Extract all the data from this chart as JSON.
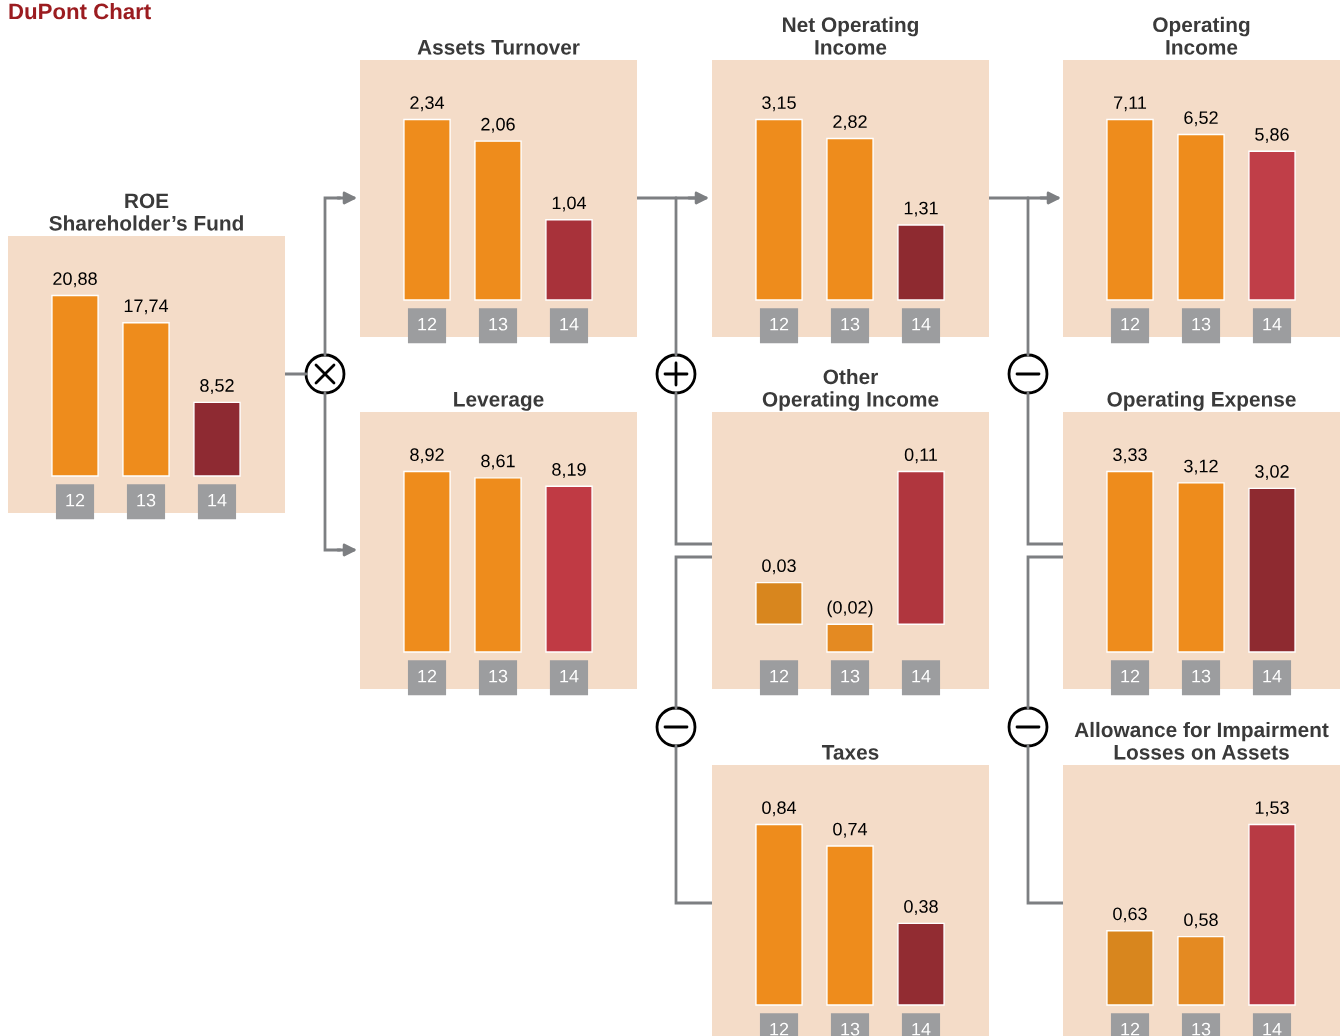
{
  "chart_data": [
    {
      "type": "other",
      "title": "DuPont Chart"
    },
    {
      "type": "bar",
      "title": "ROE\nShareholder’s Fund",
      "categories": [
        "12",
        "13",
        "14"
      ],
      "values": [
        20.88,
        17.74,
        8.52
      ],
      "value_labels": [
        "20,88",
        "17,74",
        "8,52"
      ],
      "colors": [
        "#ee8c1c",
        "#ee8c1c",
        "#8e2a32"
      ]
    },
    {
      "type": "bar",
      "title": "Assets Turnover",
      "categories": [
        "12",
        "13",
        "14"
      ],
      "values": [
        2.34,
        2.06,
        1.04
      ],
      "value_labels": [
        "2,34",
        "2,06",
        "1,04"
      ],
      "colors": [
        "#ee8c1c",
        "#ee8c1c",
        "#a8323a"
      ]
    },
    {
      "type": "bar",
      "title": "Net Operating\nIncome",
      "categories": [
        "12",
        "13",
        "14"
      ],
      "values": [
        3.15,
        2.82,
        1.31
      ],
      "value_labels": [
        "3,15",
        "2,82",
        "1,31"
      ],
      "colors": [
        "#ee8c1c",
        "#ee8c1c",
        "#8e2a30"
      ]
    },
    {
      "type": "bar",
      "title": "Operating\nIncome",
      "categories": [
        "12",
        "13",
        "14"
      ],
      "values": [
        7.11,
        6.52,
        5.86
      ],
      "value_labels": [
        "7,11",
        "6,52",
        "5,86"
      ],
      "colors": [
        "#ee8c1c",
        "#ee8c1c",
        "#c03e48"
      ]
    },
    {
      "type": "bar",
      "title": "Leverage",
      "categories": [
        "12",
        "13",
        "14"
      ],
      "values": [
        8.92,
        8.61,
        8.19
      ],
      "value_labels": [
        "8,92",
        "8,61",
        "8,19"
      ],
      "colors": [
        "#ee8c1c",
        "#ee8c1c",
        "#c03a44"
      ]
    },
    {
      "type": "bar",
      "title": "Other\nOperating Income",
      "categories": [
        "12",
        "13",
        "14"
      ],
      "values": [
        0.03,
        -0.02,
        0.11
      ],
      "value_labels": [
        "0,03",
        "(0,02)",
        "0,11"
      ],
      "colors": [
        "#d8861e",
        "#e48a22",
        "#b0363e"
      ]
    },
    {
      "type": "bar",
      "title": "Operating Expense",
      "categories": [
        "12",
        "13",
        "14"
      ],
      "values": [
        3.33,
        3.12,
        3.02
      ],
      "value_labels": [
        "3,33",
        "3,12",
        "3,02"
      ],
      "colors": [
        "#ee8c1c",
        "#ee8c1c",
        "#8e2a30"
      ]
    },
    {
      "type": "bar",
      "title": "Taxes",
      "categories": [
        "12",
        "13",
        "14"
      ],
      "values": [
        0.84,
        0.74,
        0.38
      ],
      "value_labels": [
        "0,84",
        "0,74",
        "0,38"
      ],
      "colors": [
        "#ee8c1c",
        "#ee8c1c",
        "#922c32"
      ]
    },
    {
      "type": "bar",
      "title": "Allowance for Impairment\nLosses on Assets",
      "categories": [
        "12",
        "13",
        "14"
      ],
      "values": [
        0.63,
        0.58,
        1.53
      ],
      "value_labels": [
        "0,63",
        "0,58",
        "1,53"
      ],
      "colors": [
        "#d8861e",
        "#e48a22",
        "#b83a44"
      ]
    }
  ]
}
